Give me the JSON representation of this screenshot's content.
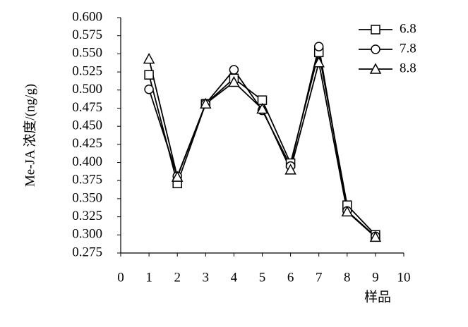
{
  "chart_data": {
    "type": "line",
    "y_label": "Me-JA 浓度/(ng/g)",
    "x_label": "样品",
    "x": [
      1,
      2,
      3,
      4,
      5,
      6,
      7,
      8,
      9
    ],
    "series": [
      {
        "name": "6.8",
        "color": "#000000",
        "marker": "square",
        "values": [
          0.521,
          0.371,
          0.481,
          0.516,
          0.486,
          0.399,
          0.552,
          0.341,
          0.3
        ]
      },
      {
        "name": "7.8",
        "color": "#000000",
        "marker": "circle",
        "values": [
          0.501,
          0.381,
          0.481,
          0.528,
          0.472,
          0.395,
          0.56,
          0.333,
          0.298
        ]
      },
      {
        "name": "8.8",
        "color": "#000000",
        "marker": "triangle",
        "values": [
          0.543,
          0.38,
          0.481,
          0.511,
          0.474,
          0.39,
          0.538,
          0.332,
          0.297
        ]
      }
    ],
    "xlim": [
      0,
      10
    ],
    "xticks": [
      0,
      1,
      2,
      3,
      4,
      5,
      6,
      7,
      8,
      9,
      10
    ],
    "ylim": [
      0.275,
      0.6
    ],
    "yticks": [
      0.275,
      {
        "value": 0.3,
        "label": "0.300"
      },
      0.325,
      {
        "value": 0.35,
        "label": "0.350"
      },
      0.375,
      {
        "value": 0.4,
        "label": "0.400"
      },
      0.425,
      {
        "value": 0.45,
        "label": "0.450"
      },
      0.475,
      {
        "value": 0.5,
        "label": "0.500"
      },
      0.525,
      {
        "value": 0.55,
        "label": "0.550"
      },
      0.575,
      {
        "value": 0.6,
        "label": "0.600"
      }
    ],
    "grid": false,
    "legend": "upper right"
  }
}
